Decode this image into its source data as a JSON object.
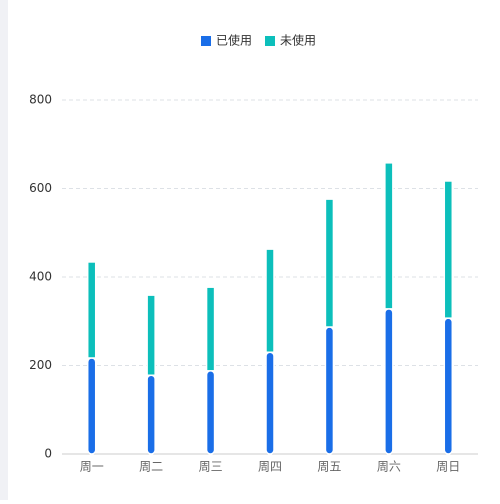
{
  "chart_data": {
    "type": "stacked-bar",
    "categories": [
      "周一",
      "周二",
      "周三",
      "周四",
      "周五",
      "周六",
      "周日"
    ],
    "series": [
      {
        "name": "已使用",
        "color": "#1a6ee8",
        "values": [
          217,
          178,
          188,
          230,
          287,
          328,
          307
        ]
      },
      {
        "name": "未使用",
        "color": "#0cbfbb",
        "values": [
          217,
          181,
          189,
          233,
          289,
          330,
          310
        ]
      }
    ],
    "ylim": [
      0,
      800
    ],
    "yticks": [
      0,
      200,
      400,
      600,
      800
    ],
    "grid": true,
    "legend": "top"
  }
}
